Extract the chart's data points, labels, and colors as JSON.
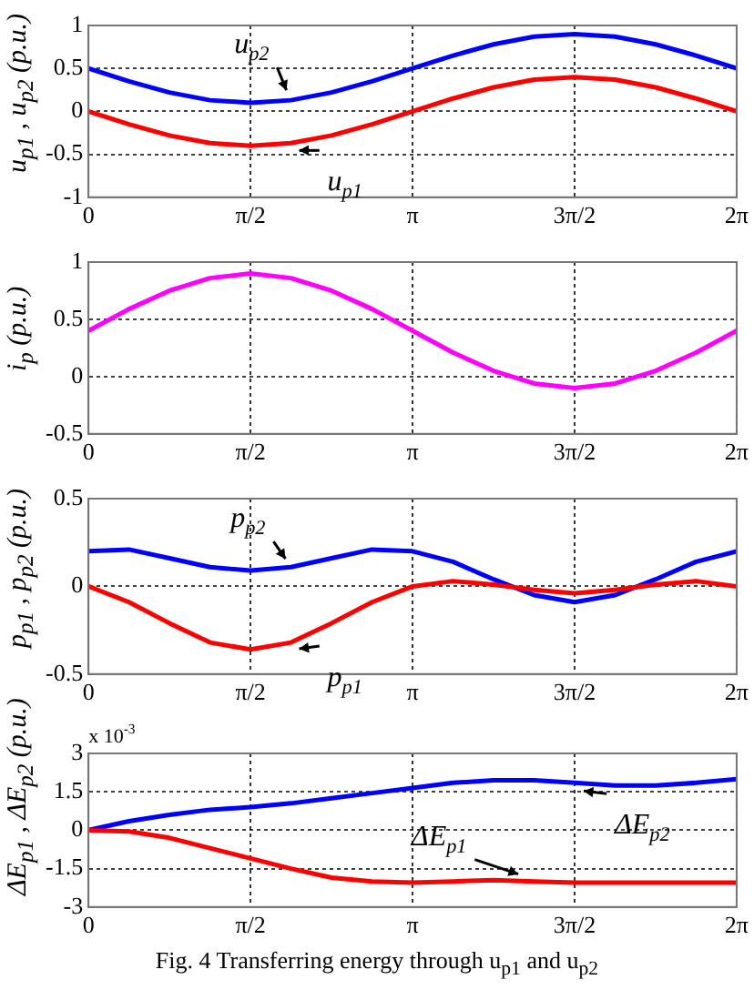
{
  "chart_data": [
    {
      "type": "line",
      "ylabel": "u$_{p1}$ , u$_{p2}$ (p.u.)",
      "xlim": [
        0,
        6.283
      ],
      "xticks": [
        {
          "value": 0,
          "label": "0"
        },
        {
          "value": 1.571,
          "label": "π/2"
        },
        {
          "value": 3.142,
          "label": "π"
        },
        {
          "value": 4.712,
          "label": "3π/2"
        },
        {
          "value": 6.283,
          "label": "2π"
        }
      ],
      "ylim": [
        -1,
        1
      ],
      "yticks": [
        -1,
        -0.5,
        0,
        0.5,
        1
      ],
      "grid": true,
      "marker": "none",
      "line_style": "solid",
      "x": [
        0,
        0.393,
        0.785,
        1.178,
        1.571,
        1.963,
        2.356,
        2.749,
        3.142,
        3.534,
        3.927,
        4.32,
        4.712,
        5.105,
        5.498,
        5.89,
        6.283
      ],
      "series": [
        {
          "name": "u$_{p1}$",
          "color": "#ff0000",
          "values": [
            0,
            -0.15,
            -0.28,
            -0.37,
            -0.4,
            -0.37,
            -0.28,
            -0.15,
            0,
            0.15,
            0.28,
            0.37,
            0.4,
            0.37,
            0.28,
            0.15,
            0
          ]
        },
        {
          "name": "u$_{p2}$",
          "color": "#0000ff",
          "values": [
            0.5,
            0.35,
            0.22,
            0.13,
            0.1,
            0.13,
            0.22,
            0.35,
            0.5,
            0.65,
            0.78,
            0.87,
            0.9,
            0.87,
            0.78,
            0.65,
            0.5
          ]
        }
      ]
    },
    {
      "type": "line",
      "ylabel": "i$_{p}$ (p.u.)",
      "xlim": [
        0,
        6.283
      ],
      "xticks": [
        {
          "value": 0,
          "label": "0"
        },
        {
          "value": 1.571,
          "label": "π/2"
        },
        {
          "value": 3.142,
          "label": "π"
        },
        {
          "value": 4.712,
          "label": "3π/2"
        },
        {
          "value": 6.283,
          "label": "2π"
        }
      ],
      "ylim": [
        -0.5,
        1
      ],
      "yticks": [
        -0.5,
        0,
        0.5,
        1
      ],
      "grid": true,
      "marker": "none",
      "line_style": "solid",
      "x": [
        0,
        0.393,
        0.785,
        1.178,
        1.571,
        1.963,
        2.356,
        2.749,
        3.142,
        3.534,
        3.927,
        4.32,
        4.712,
        5.105,
        5.498,
        5.89,
        6.283
      ],
      "series": [
        {
          "color": "#ff00ff",
          "values": [
            0.4,
            0.59,
            0.75,
            0.86,
            0.9,
            0.86,
            0.75,
            0.59,
            0.4,
            0.21,
            0.05,
            -0.06,
            -0.1,
            -0.06,
            0.05,
            0.21,
            0.4
          ]
        }
      ]
    },
    {
      "type": "line",
      "ylabel": "p$_{p1}$ , p$_{p2}$ (p.u.)",
      "xlim": [
        0,
        6.283
      ],
      "xticks": [
        {
          "value": 0,
          "label": "0"
        },
        {
          "value": 1.571,
          "label": "π/2"
        },
        {
          "value": 3.142,
          "label": "π"
        },
        {
          "value": 4.712,
          "label": "3π/2"
        },
        {
          "value": 6.283,
          "label": "2π"
        }
      ],
      "ylim": [
        -0.5,
        0.5
      ],
      "yticks": [
        -0.5,
        0,
        0.5
      ],
      "grid": true,
      "marker": "none",
      "line_style": "solid",
      "x": [
        0,
        0.393,
        0.785,
        1.178,
        1.571,
        1.963,
        2.356,
        2.749,
        3.142,
        3.534,
        3.927,
        4.32,
        4.712,
        5.105,
        5.498,
        5.89,
        6.283
      ],
      "series": [
        {
          "name": "p$_{p1}$",
          "color": "#ff0000",
          "values": [
            0,
            -0.09,
            -0.21,
            -0.32,
            -0.36,
            -0.32,
            -0.21,
            -0.09,
            0,
            0.03,
            0.01,
            -0.02,
            -0.04,
            -0.02,
            0.01,
            0.03,
            0
          ]
        },
        {
          "name": "p$_{p2}$",
          "color": "#0000ff",
          "values": [
            0.2,
            0.21,
            0.16,
            0.11,
            0.09,
            0.11,
            0.16,
            0.21,
            0.2,
            0.14,
            0.04,
            -0.05,
            -0.09,
            -0.05,
            0.04,
            0.14,
            0.2
          ]
        }
      ]
    },
    {
      "type": "line",
      "ylabel": "ΔE$_{p1}$ , ΔE$_{p2}$ (p.u.)",
      "xlim": [
        0,
        6.283
      ],
      "xticks": [
        {
          "value": 0,
          "label": "0"
        },
        {
          "value": 1.571,
          "label": "π/2"
        },
        {
          "value": 3.142,
          "label": "π"
        },
        {
          "value": 4.712,
          "label": "3π/2"
        },
        {
          "value": 6.283,
          "label": "2π"
        }
      ],
      "ylim": [
        -3,
        3
      ],
      "yticks": [
        -3,
        -1.5,
        0,
        1.5,
        3
      ],
      "grid": true,
      "marker": "none",
      "line_style": "solid",
      "annotations": [
        "x 10$^{-3}$",
        "Fig. 4 Transferring energy through u$_{p1}$ and u$_{p2}$"
      ],
      "x": [
        0,
        0.393,
        0.785,
        1.178,
        1.571,
        1.963,
        2.356,
        2.749,
        3.142,
        3.534,
        3.927,
        4.32,
        4.712,
        5.105,
        5.498,
        5.89,
        6.283
      ],
      "series": [
        {
          "name": "ΔE$_{p1}$",
          "color": "#ff0000",
          "values": [
            0,
            -0.05,
            -0.3,
            -0.7,
            -1.1,
            -1.5,
            -1.85,
            -2.0,
            -2.05,
            -2.0,
            -1.95,
            -2.0,
            -2.05,
            -2.05,
            -2.05,
            -2.05,
            -2.05
          ]
        },
        {
          "name": "ΔE$_{p2}$",
          "color": "#0000ff",
          "values": [
            0,
            0.35,
            0.6,
            0.8,
            0.9,
            1.05,
            1.25,
            1.45,
            1.65,
            1.85,
            1.95,
            1.95,
            1.85,
            1.75,
            1.75,
            1.85,
            2.0
          ]
        }
      ]
    }
  ]
}
